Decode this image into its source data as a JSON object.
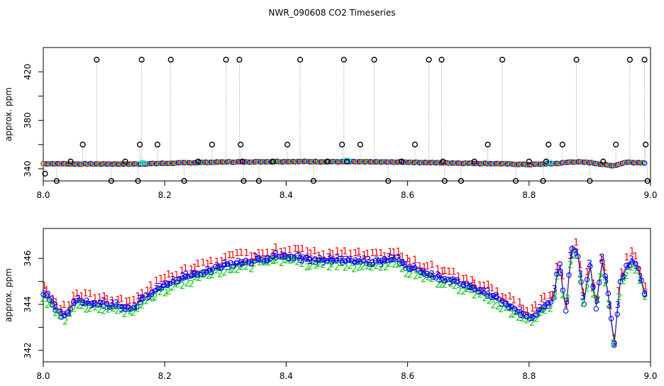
{
  "title": "NWR_090608  CO2 Timeseries",
  "chart_data": [
    {
      "type": "scatter",
      "name": "top-panel",
      "ylabel": "approx. ppm",
      "xlim": [
        8.0,
        9.0
      ],
      "ylim": [
        330,
        440
      ],
      "x_ticks": [
        "8.0",
        "8.2",
        "8.4",
        "8.6",
        "8.8",
        "9.0"
      ],
      "x_tick_values": [
        8.0,
        8.2,
        8.4,
        8.6,
        8.8,
        9.0
      ],
      "y_ticks": [
        "340",
        "380",
        "420"
      ],
      "y_tick_values": [
        340,
        380,
        420
      ],
      "y_minor_tick_values": [
        360,
        400
      ],
      "baseline": {
        "x": [
          8.0,
          8.05,
          8.1,
          8.15,
          8.2,
          8.25,
          8.3,
          8.35,
          8.4,
          8.45,
          8.5,
          8.55,
          8.6,
          8.65,
          8.7,
          8.75,
          8.8,
          8.85,
          8.87,
          8.9,
          8.93,
          8.94,
          8.96,
          8.99
        ],
        "y": [
          344.3,
          344.0,
          344.0,
          343.9,
          344.5,
          345.1,
          345.6,
          345.8,
          346.0,
          345.9,
          345.8,
          345.6,
          345.5,
          345.0,
          344.6,
          344.2,
          343.5,
          344.5,
          345.8,
          345.2,
          343.0,
          342.6,
          345.5,
          345.0
        ]
      },
      "outliers": {
        "x": [
          8.003,
          8.022,
          8.045,
          8.065,
          8.088,
          8.112,
          8.135,
          8.156,
          8.159,
          8.162,
          8.188,
          8.21,
          8.232,
          8.255,
          8.278,
          8.301,
          8.323,
          8.325,
          8.328,
          8.33,
          8.355,
          8.378,
          8.402,
          8.423,
          8.445,
          8.468,
          8.492,
          8.495,
          8.5,
          8.522,
          8.545,
          8.568,
          8.59,
          8.612,
          8.635,
          8.656,
          8.658,
          8.661,
          8.688,
          8.71,
          8.732,
          8.756,
          8.778,
          8.8,
          8.823,
          8.828,
          8.832,
          8.855,
          8.878,
          8.9,
          8.922,
          8.943,
          8.966,
          8.99,
          8.992,
          8.995
        ],
        "y": [
          336,
          330,
          346,
          360,
          430,
          330,
          346,
          330,
          360,
          430,
          360,
          430,
          330,
          346,
          360,
          430,
          430,
          360,
          346,
          330,
          330,
          346,
          360,
          430,
          330,
          346,
          360,
          430,
          346,
          360,
          430,
          330,
          346,
          360,
          430,
          430,
          346,
          330,
          330,
          346,
          360,
          430,
          330,
          346,
          330,
          346,
          360,
          360,
          430,
          330,
          346,
          360,
          430,
          430,
          360,
          330
        ]
      },
      "series_colors": [
        "#000000",
        "#ff0000",
        "#00cd00",
        "#0000ff",
        "#00ffff"
      ]
    },
    {
      "type": "scatter",
      "name": "bottom-panel",
      "ylabel": "approx. ppm",
      "xlim": [
        8.0,
        9.0
      ],
      "ylim": [
        341.5,
        347.3
      ],
      "x_ticks": [
        "8.0",
        "8.2",
        "8.4",
        "8.6",
        "8.8",
        "9.0"
      ],
      "x_tick_values": [
        8.0,
        8.2,
        8.4,
        8.6,
        8.8,
        9.0
      ],
      "y_ticks": [
        "342",
        "344",
        "346"
      ],
      "y_tick_values": [
        342,
        344,
        346
      ],
      "y_minor_tick_values": [
        343,
        345
      ],
      "series": [
        {
          "name": "1",
          "color": "#ff0000",
          "offset": 0.3
        },
        {
          "name": "2",
          "color": "#00cd00",
          "offset": -0.25
        },
        {
          "name": "3",
          "color": "#0000ff",
          "offset": 0.0
        }
      ],
      "baseline": {
        "x": [
          8.0,
          8.012,
          8.02,
          8.03,
          8.04,
          8.05,
          8.1,
          8.15,
          8.16,
          8.2,
          8.25,
          8.3,
          8.35,
          8.4,
          8.45,
          8.5,
          8.55,
          8.58,
          8.6,
          8.65,
          8.7,
          8.75,
          8.8,
          8.82,
          8.84,
          8.85,
          8.86,
          8.87,
          8.88,
          8.89,
          8.9,
          8.91,
          8.92,
          8.93,
          8.94,
          8.95,
          8.96,
          8.97,
          8.98,
          8.99
        ],
        "y": [
          344.4,
          344.2,
          343.8,
          343.5,
          343.6,
          344.1,
          344.0,
          343.8,
          344.2,
          344.8,
          345.3,
          345.7,
          345.9,
          346.1,
          345.9,
          345.9,
          345.8,
          346.0,
          345.6,
          345.2,
          344.8,
          344.2,
          343.4,
          343.8,
          344.2,
          346.0,
          343.5,
          346.5,
          346.3,
          344.0,
          345.8,
          343.8,
          345.9,
          344.5,
          342.2,
          345.0,
          345.6,
          345.9,
          345.5,
          344.5
        ]
      }
    }
  ]
}
